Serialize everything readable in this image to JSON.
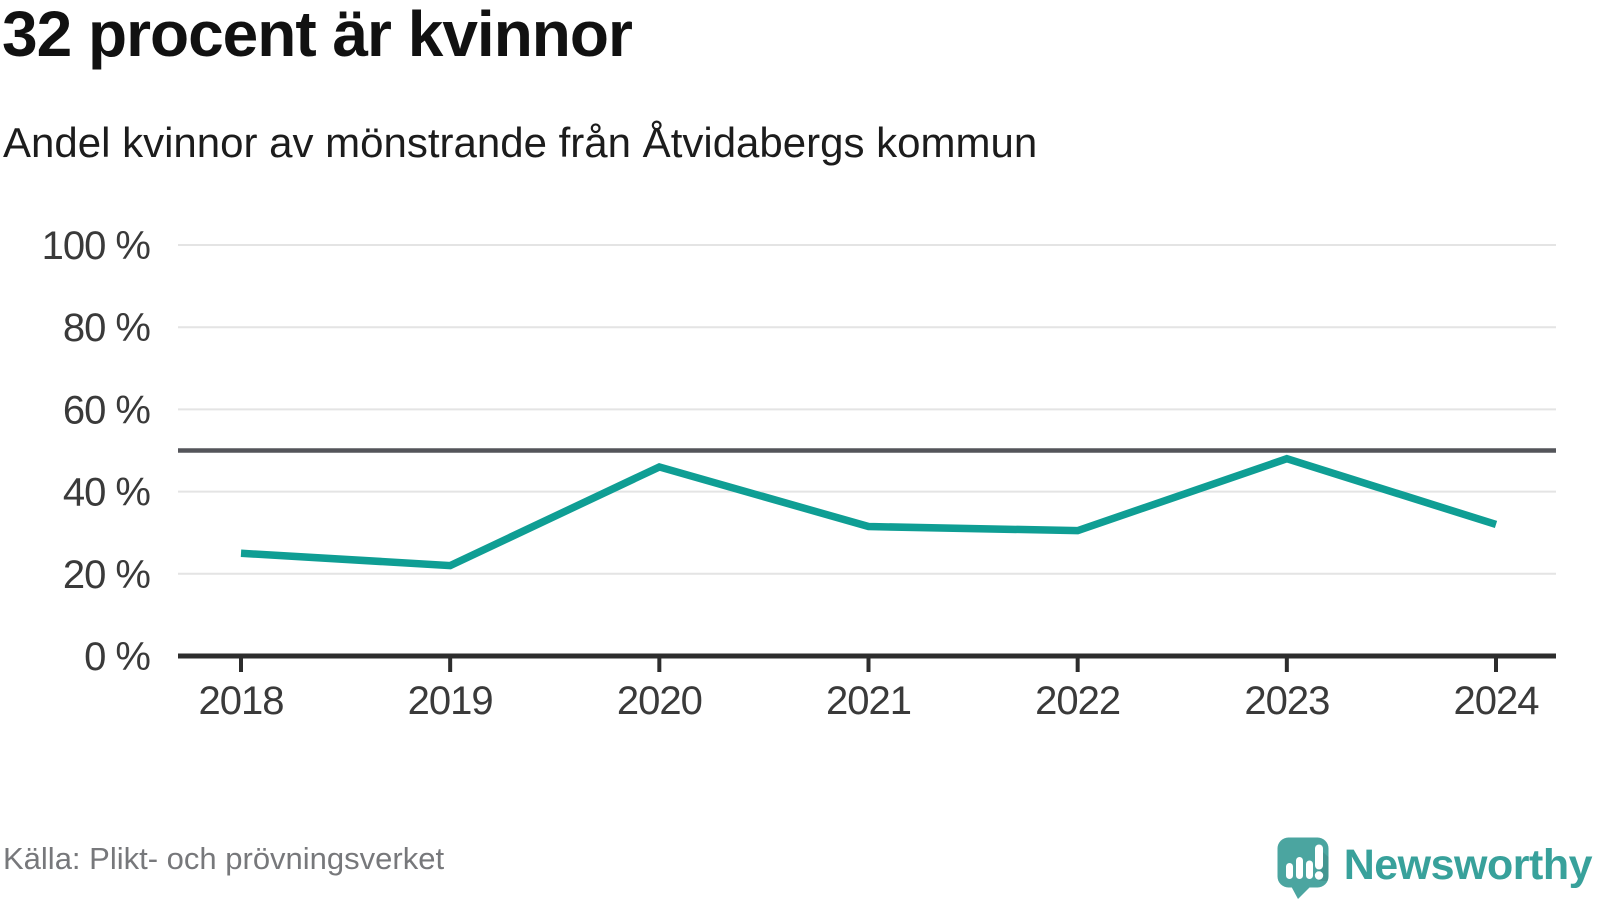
{
  "chart_data": {
    "type": "line",
    "title": "32 procent är kvinnor",
    "subtitle": "Andel kvinnor av mönstrande från Åtvidabergs kommun",
    "x": [
      "2018",
      "2019",
      "2020",
      "2021",
      "2022",
      "2023",
      "2024"
    ],
    "values": [
      25,
      22,
      46,
      31.5,
      30.5,
      48,
      32
    ],
    "unit": "%",
    "ylim": [
      0,
      100
    ],
    "yticks": [
      {
        "value": 0,
        "label": "0 %"
      },
      {
        "value": 20,
        "label": "20 %"
      },
      {
        "value": 40,
        "label": "40 %"
      },
      {
        "value": 60,
        "label": "60 %"
      },
      {
        "value": 80,
        "label": "80 %"
      },
      {
        "value": 100,
        "label": "100 %"
      }
    ],
    "reference_line": {
      "value": 50
    },
    "grid": true,
    "legend": "none"
  },
  "footer": {
    "source": "Källa: Plikt- och prövningsverket",
    "logo_text": "Newsworthy"
  },
  "colors": {
    "line": "#0f9e94",
    "grid": "#e4e4e4",
    "axis": "#2d2d2d",
    "reference": "#54555a",
    "axis_label": "#3a3a3a",
    "title": "#111111",
    "subtitle": "#1c1c1c",
    "source_text": "#77787b",
    "logo_icon": "#4ba5a0",
    "logo_text": "#38a19b"
  }
}
